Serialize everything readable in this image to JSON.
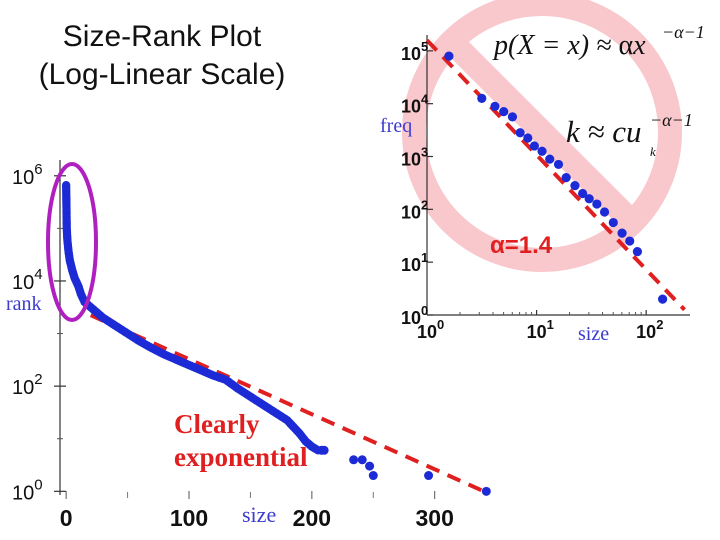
{
  "slide": {
    "title_line1": "Size-Rank Plot",
    "title_line2": "(Log-Linear Scale)",
    "alpha_label": "α=1.4",
    "annotation_line1": "Clearly",
    "annotation_line2": "exponential",
    "formula_pdf": "p(X = x) ≈ α x^(−α−1)",
    "formula_count": "k ≈ c u_k^(−α−1)"
  },
  "colors": {
    "points": "#1c2bd6",
    "fit": "#e02020",
    "annotation": "#e02020",
    "alpha_label": "#e02020",
    "highlight": "#b020c0",
    "no_sign": "#f8c8cc",
    "axis_words": "#3b3bd0"
  },
  "chart_data": [
    {
      "type": "scatter",
      "title": "Size-Rank Plot (Log-Linear Scale)",
      "xlabel": "size",
      "ylabel": "rank",
      "xscale": "linear",
      "yscale": "log",
      "xlim": [
        -5,
        345
      ],
      "ylim_log10": [
        -0.07,
        6.3
      ],
      "xticks": [
        0,
        100,
        200,
        300
      ],
      "xtick_labels": [
        "0",
        "100",
        "200",
        "300"
      ],
      "yticks_log10": [
        0,
        2,
        4,
        6
      ],
      "ytick_labels": [
        {
          "base": "10",
          "exp": "0"
        },
        {
          "base": "10",
          "exp": "2"
        },
        {
          "base": "10",
          "exp": "4"
        },
        {
          "base": "10",
          "exp": "6"
        }
      ],
      "series": [
        {
          "name": "size-rank data",
          "style": "dense-curve",
          "x": [
            0,
            0.5,
            1,
            2,
            3,
            5,
            7,
            10,
            12,
            15,
            20,
            25,
            30,
            40,
            50,
            60,
            70,
            80,
            90,
            100,
            110,
            120,
            130,
            140,
            150,
            160,
            170,
            180,
            190,
            195,
            200,
            205
          ],
          "log10_y": [
            5.82,
            5.0,
            4.78,
            4.55,
            4.39,
            4.2,
            4.05,
            3.9,
            3.75,
            3.6,
            3.5,
            3.4,
            3.3,
            3.15,
            3.0,
            2.85,
            2.72,
            2.6,
            2.5,
            2.4,
            2.3,
            2.2,
            2.12,
            1.95,
            1.8,
            1.65,
            1.5,
            1.35,
            1.1,
            0.95,
            0.85,
            0.78
          ]
        },
        {
          "name": "tail points",
          "style": "markers",
          "x": [
            208,
            210,
            234,
            241,
            247,
            250,
            295,
            342
          ],
          "log10_y": [
            0.78,
            0.78,
            0.6,
            0.6,
            0.48,
            0.3,
            0.3,
            0.0
          ]
        },
        {
          "name": "exponential fit",
          "style": "dashed-line",
          "x": [
            20,
            340
          ],
          "log10_y": [
            3.35,
            0.0
          ]
        }
      ],
      "annotations": [
        {
          "text": "Clearly exponential",
          "near": "lower-middle"
        }
      ]
    },
    {
      "type": "scatter",
      "title": "",
      "xlabel": "size",
      "ylabel": "freq",
      "xscale": "log",
      "yscale": "log",
      "xlim_log10": [
        0,
        2.4
      ],
      "ylim_log10": [
        0,
        5.3
      ],
      "xticks_log10": [
        0,
        1,
        2
      ],
      "xtick_labels": [
        {
          "base": "10",
          "exp": "0"
        },
        {
          "base": "10",
          "exp": "1"
        },
        {
          "base": "10",
          "exp": "2"
        }
      ],
      "yticks_log10": [
        0,
        1,
        2,
        3,
        4,
        5
      ],
      "ytick_labels": [
        {
          "base": "10",
          "exp": "0"
        },
        {
          "base": "10",
          "exp": "1"
        },
        {
          "base": "10",
          "exp": "2"
        },
        {
          "base": "10",
          "exp": "3"
        },
        {
          "base": "10",
          "exp": "4"
        },
        {
          "base": "10",
          "exp": "5"
        }
      ],
      "series": [
        {
          "name": "freq data",
          "style": "markers",
          "log10_x": [
            0.2,
            0.5,
            0.62,
            0.7,
            0.78,
            0.85,
            0.92,
            0.98,
            1.05,
            1.12,
            1.2,
            1.27,
            1.35,
            1.42,
            1.48,
            1.55,
            1.62,
            1.7,
            1.78,
            1.85,
            1.92,
            2.15
          ],
          "log10_y": [
            4.9,
            4.1,
            3.95,
            3.85,
            3.75,
            3.45,
            3.35,
            3.2,
            3.1,
            2.95,
            2.85,
            2.6,
            2.45,
            2.3,
            2.2,
            2.1,
            1.95,
            1.75,
            1.55,
            1.4,
            1.2,
            0.3
          ]
        },
        {
          "name": "power-law fit",
          "style": "dashed-line",
          "log10_x": [
            0,
            2.35
          ],
          "log10_y": [
            5.2,
            0.1
          ]
        }
      ],
      "annotations": [
        {
          "text": "α=1.4",
          "near": "middle-right"
        }
      ]
    }
  ]
}
